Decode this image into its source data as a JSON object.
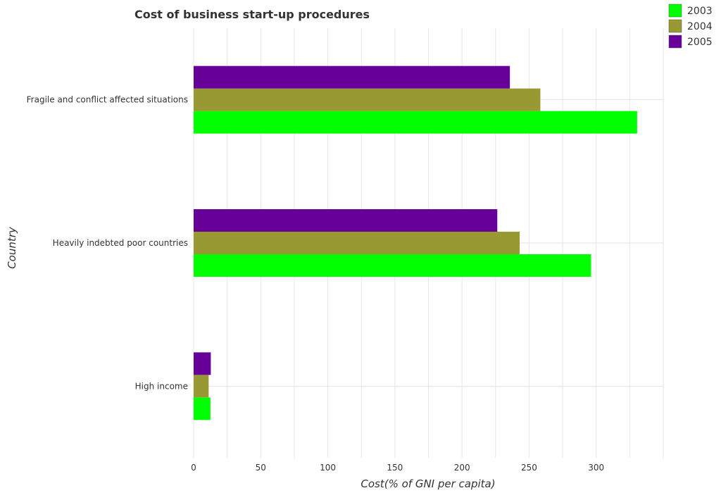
{
  "chart_data": {
    "type": "bar",
    "orientation": "horizontal",
    "title": "Cost of business start-up procedures",
    "xlabel": "Cost(% of GNI per capita)",
    "ylabel": "Country",
    "xlim": [
      0,
      350
    ],
    "xticks": [
      0,
      50,
      100,
      150,
      200,
      250,
      300
    ],
    "grid": true,
    "legend_position": "top-right",
    "categories": [
      "Fragile and conflict affected situations",
      "Heavily indebted poor countries",
      "High income"
    ],
    "series": [
      {
        "name": "2003",
        "color": "#00ff00",
        "values": [
          330.5,
          296.2,
          12.5
        ]
      },
      {
        "name": "2004",
        "color": "#999933",
        "values": [
          258.4,
          243.0,
          11.2
        ]
      },
      {
        "name": "2005",
        "color": "#660099",
        "values": [
          235.7,
          226.3,
          12.8
        ]
      }
    ]
  }
}
